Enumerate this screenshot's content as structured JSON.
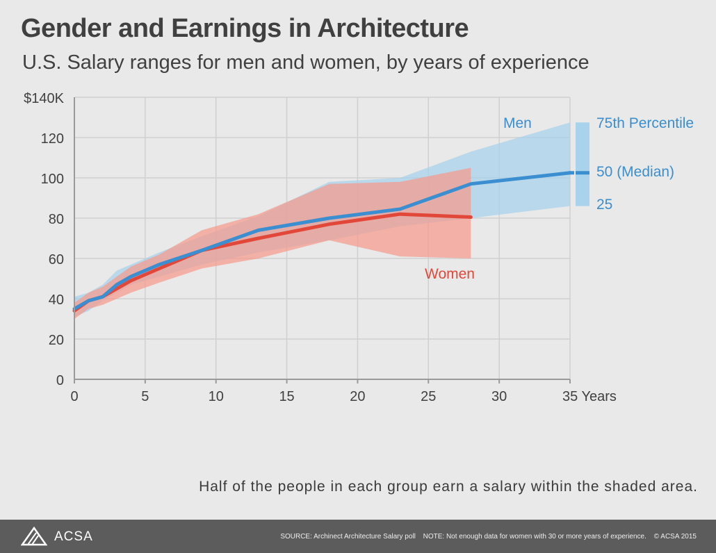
{
  "title": "Gender and Earnings in Architecture",
  "subtitle": "U.S. Salary ranges for men and women, by years of experience",
  "caption": "Half of the people in each group earn a salary within the shaded area.",
  "footer": {
    "logo": "ACSA",
    "source": "SOURCE: Archinect Architecture Salary poll",
    "note": "NOTE: Not enough data for women with 30 or more years of experience.",
    "copyright": "© ACSA 2015"
  },
  "colors": {
    "background": "#e8e9e8",
    "grid": "#cfd0cf",
    "men_band": "#a9d2ec",
    "men_line": "#3b8ed0",
    "women_band": "#f59a8c",
    "women_line": "#e2483a",
    "text": "#404040",
    "footer": "#5c5c5c"
  },
  "chart_data": {
    "type": "area",
    "title": "Gender and Earnings in Architecture",
    "subtitle": "U.S. Salary ranges for men and women, by years of experience",
    "xlabel": "Years",
    "ylabel": "",
    "xlim": [
      0,
      35
    ],
    "ylim": [
      0,
      140
    ],
    "x_ticks": [
      0,
      5,
      10,
      15,
      20,
      25,
      30,
      35
    ],
    "x_tick_labels": [
      "0",
      "5",
      "10",
      "15",
      "20",
      "25",
      "30",
      "35 Years"
    ],
    "y_ticks": [
      0,
      20,
      40,
      60,
      80,
      100,
      120,
      140
    ],
    "y_tick_labels": [
      "0",
      "20",
      "40",
      "60",
      "80",
      "100",
      "120",
      "$140K"
    ],
    "grid": true,
    "series": [
      {
        "name": "Men",
        "x": [
          0,
          1,
          2,
          3,
          4,
          6,
          9,
          13,
          18,
          23,
          28,
          35
        ],
        "p25": [
          31,
          34,
          39,
          43,
          47,
          51,
          57,
          63,
          69,
          76,
          80,
          86
        ],
        "median": [
          35,
          39,
          41,
          47,
          51,
          57,
          64,
          74,
          80,
          84.5,
          97,
          102.5
        ],
        "p75": [
          41,
          43,
          47,
          54,
          57,
          63,
          71,
          81,
          98,
          100,
          113,
          127.5
        ]
      },
      {
        "name": "Women",
        "x": [
          0,
          1,
          2,
          3,
          4,
          6,
          9,
          13,
          18,
          23,
          28
        ],
        "p25": [
          30,
          35,
          37,
          40,
          43,
          48,
          55,
          60,
          69,
          61,
          60
        ],
        "median": [
          34,
          39,
          41,
          45,
          49,
          55,
          64,
          70,
          77,
          82,
          80.5
        ],
        "p75": [
          38,
          43,
          46,
          51,
          56,
          62,
          74,
          82,
          97,
          98,
          105
        ]
      }
    ],
    "legend": {
      "percentile_labels": [
        "75th Percentile",
        "50 (Median)",
        "25"
      ],
      "percentile_values": [
        127.5,
        102.5,
        86
      ]
    }
  }
}
